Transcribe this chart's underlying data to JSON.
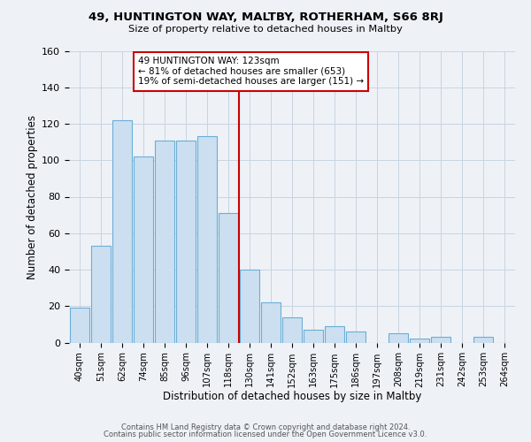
{
  "title": "49, HUNTINGTON WAY, MALTBY, ROTHERHAM, S66 8RJ",
  "subtitle": "Size of property relative to detached houses in Maltby",
  "xlabel": "Distribution of detached houses by size in Maltby",
  "ylabel": "Number of detached properties",
  "bar_labels": [
    "40sqm",
    "51sqm",
    "62sqm",
    "74sqm",
    "85sqm",
    "96sqm",
    "107sqm",
    "118sqm",
    "130sqm",
    "141sqm",
    "152sqm",
    "163sqm",
    "175sqm",
    "186sqm",
    "197sqm",
    "208sqm",
    "219sqm",
    "231sqm",
    "242sqm",
    "253sqm",
    "264sqm"
  ],
  "bar_heights": [
    19,
    53,
    122,
    102,
    111,
    111,
    113,
    71,
    40,
    22,
    14,
    7,
    9,
    6,
    0,
    5,
    2,
    3,
    0,
    3,
    0
  ],
  "bar_color": "#ccdff0",
  "bar_edge_color": "#6aaed6",
  "vline_x": 7.5,
  "vline_color": "#cc0000",
  "annotation_title": "49 HUNTINGTON WAY: 123sqm",
  "annotation_line1": "← 81% of detached houses are smaller (653)",
  "annotation_line2": "19% of semi-detached houses are larger (151) →",
  "annotation_box_edge": "#cc0000",
  "ylim": [
    0,
    160
  ],
  "yticks": [
    0,
    20,
    40,
    60,
    80,
    100,
    120,
    140,
    160
  ],
  "footer1": "Contains HM Land Registry data © Crown copyright and database right 2024.",
  "footer2": "Contains public sector information licensed under the Open Government Licence v3.0.",
  "bg_color": "#eef2f7",
  "plot_bg_color": "#eef2f7",
  "grid_color": "#c8d4e0"
}
